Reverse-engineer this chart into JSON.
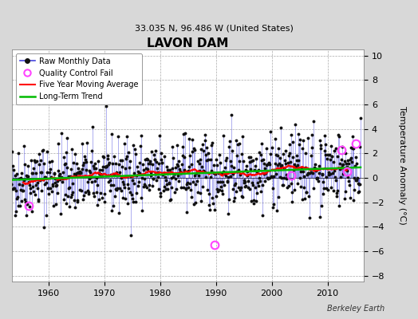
{
  "title": "LAVON DAM",
  "subtitle": "33.035 N, 96.486 W (United States)",
  "ylabel": "Temperature Anomaly (°C)",
  "watermark": "Berkeley Earth",
  "xlim": [
    1953.5,
    2016.5
  ],
  "ylim": [
    -8.5,
    10.5
  ],
  "yticks": [
    -8,
    -6,
    -4,
    -2,
    0,
    2,
    4,
    6,
    8,
    10
  ],
  "xticks": [
    1960,
    1970,
    1980,
    1990,
    2000,
    2010
  ],
  "fig_bg_color": "#d8d8d8",
  "plot_bg_color": "#ffffff",
  "raw_line_color": "#4444dd",
  "raw_marker_color": "#111111",
  "ma_color": "#ff0000",
  "trend_color": "#00bb00",
  "qc_color": "#ff44ff",
  "seed": 42,
  "years_start": 1953,
  "years_end": 2015,
  "trend_slope": 0.018,
  "base_anomaly": -0.2,
  "noise_std": 1.5,
  "qc_points": [
    [
      1956.5,
      -2.3
    ],
    [
      1989.75,
      -5.5
    ],
    [
      2003.5,
      0.2
    ],
    [
      2012.5,
      2.3
    ],
    [
      2013.5,
      0.5
    ],
    [
      2015.0,
      2.8
    ]
  ]
}
